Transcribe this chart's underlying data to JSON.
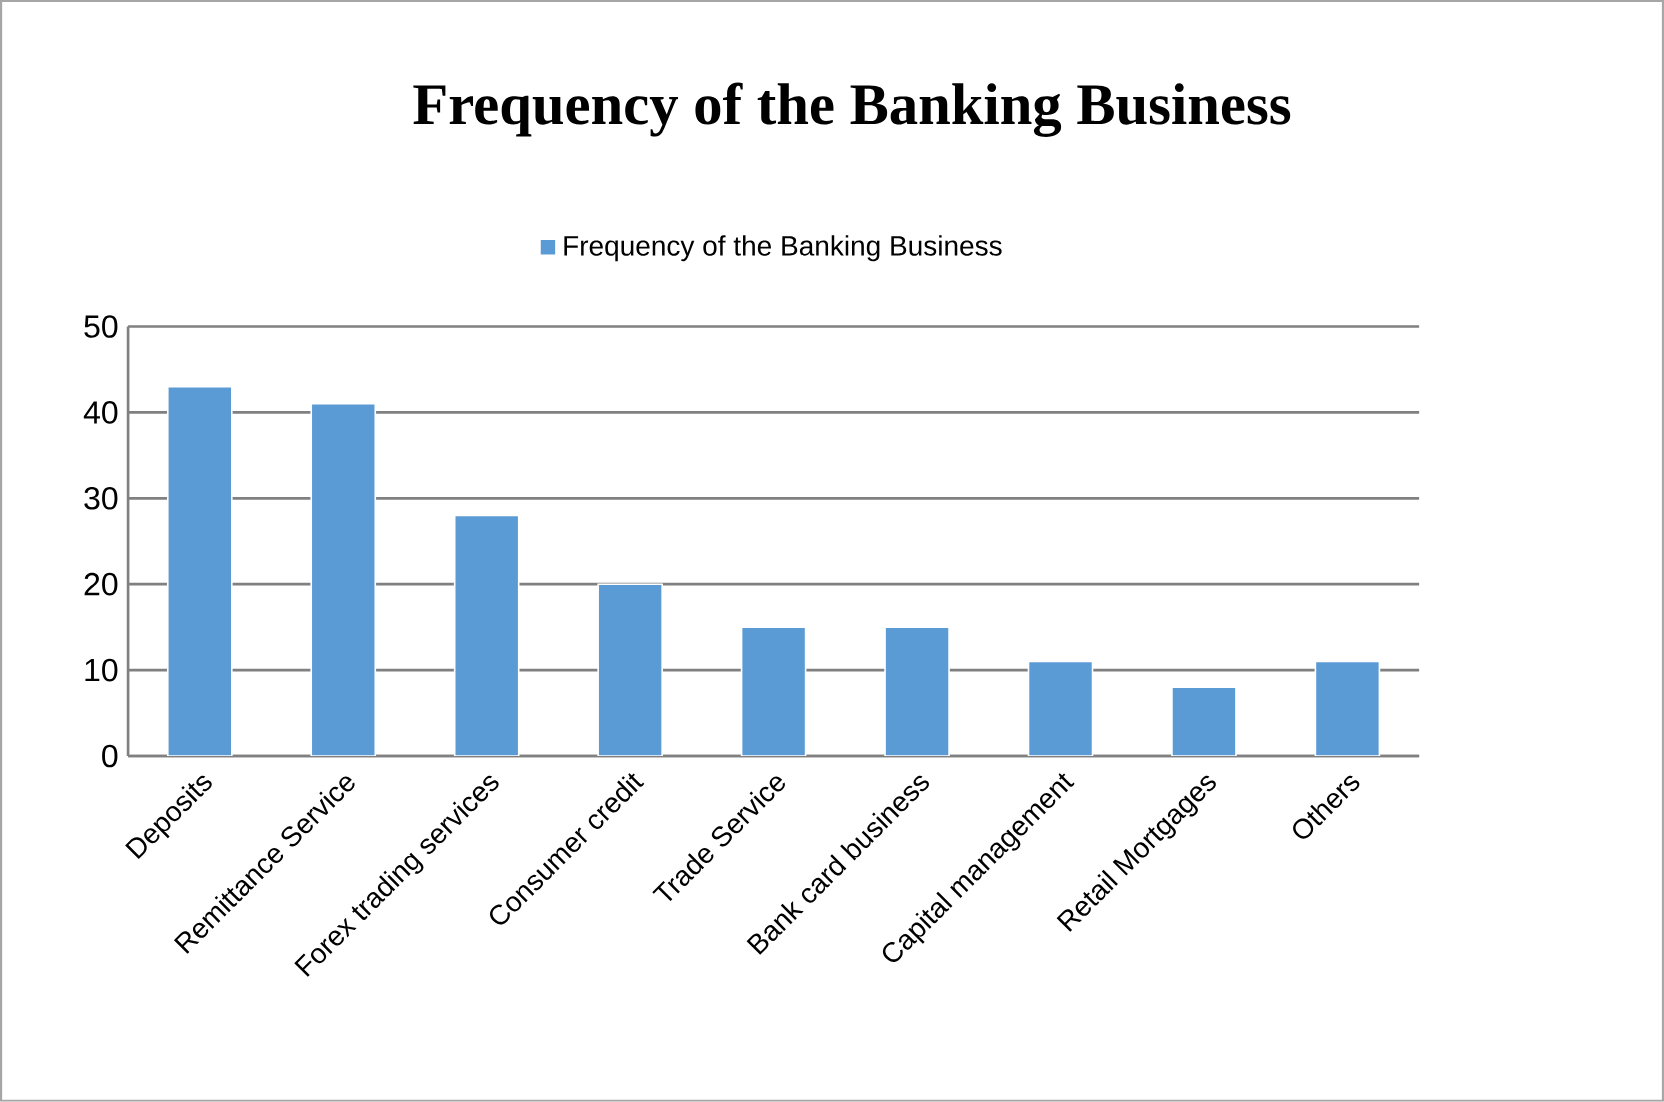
{
  "chart_data": {
    "type": "bar",
    "title": "Frequency of the Banking Business",
    "categories": [
      "Deposits",
      "Remittance Service",
      "Forex trading services",
      "Consumer credit",
      "Trade Service",
      "Bank card business",
      "Capital management",
      "Retail Mortgages",
      "Others"
    ],
    "series": [
      {
        "name": "Frequency of the Banking Business",
        "color": "#5b9bd5",
        "values": [
          43,
          41,
          28,
          20,
          15,
          15,
          11,
          8,
          11
        ]
      }
    ],
    "ylim": [
      0,
      50
    ],
    "yticks": [
      0,
      10,
      20,
      30,
      40,
      50
    ],
    "grid": "y",
    "legend": "top"
  }
}
